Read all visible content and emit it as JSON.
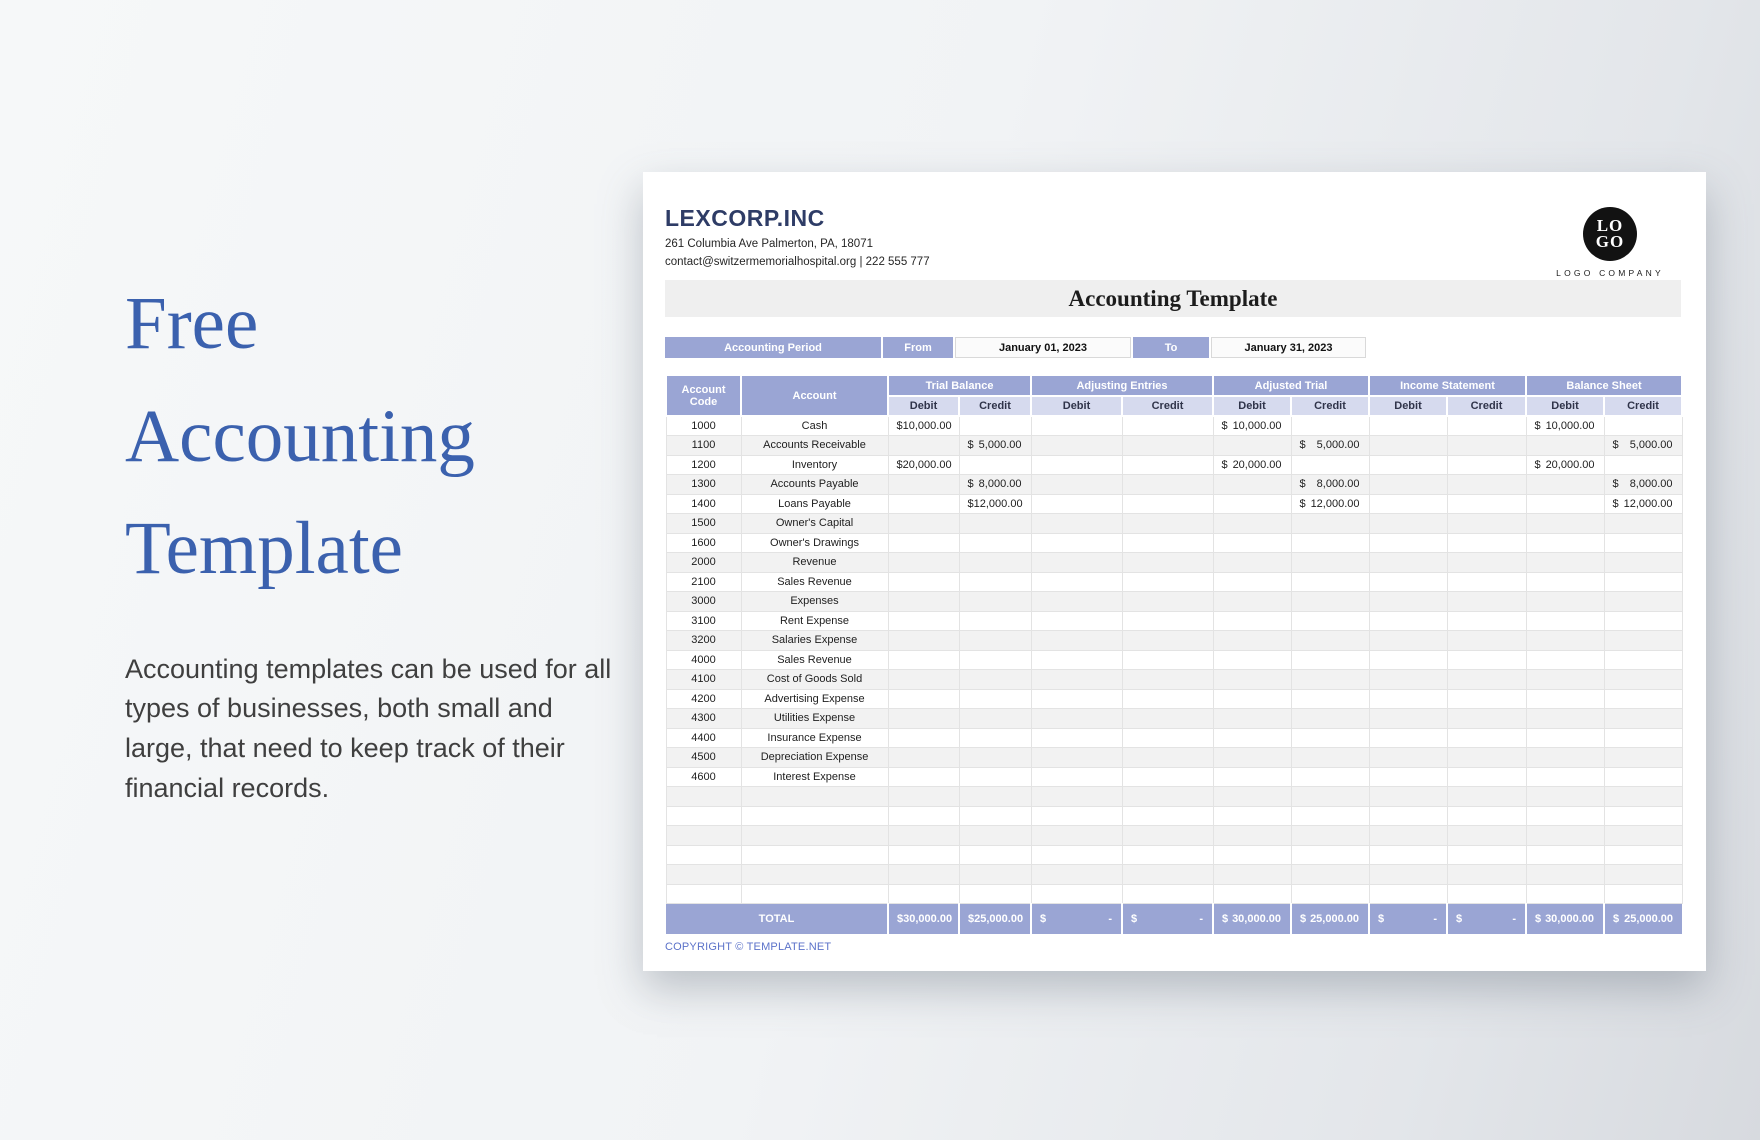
{
  "hero": {
    "title_lines": [
      "Free",
      "Accounting",
      "Template"
    ],
    "description": "Accounting templates can be used for all types of businesses, both small and large, that need to keep track of their financial records."
  },
  "document": {
    "company": {
      "name": "LEXCORP.INC",
      "address": "261 Columbia Ave Palmerton, PA, 18071",
      "contact": "contact@switzermemorialhospital.org | 222 555 777"
    },
    "logo": {
      "top": "LO",
      "bottom": "GO",
      "caption": "LOGO COMPANY"
    },
    "title": "Accounting Template",
    "period": {
      "label": "Accounting Period",
      "from_label": "From",
      "from_value": "January 01, 2023",
      "to_label": "To",
      "to_value": "January 31, 2023"
    },
    "copyright": "COPYRIGHT © TEMPLATE.NET"
  },
  "table": {
    "currency": "$",
    "col_headers": [
      "Account Code",
      "Account"
    ],
    "groups": [
      "Trial Balance",
      "Adjusting Entries",
      "Adjusted Trial",
      "Income Statement",
      "Balance Sheet"
    ],
    "sub_headers": [
      "Debit",
      "Credit"
    ],
    "rows": [
      {
        "code": "1000",
        "account": "Cash",
        "values": [
          "10,000.00",
          "",
          "",
          "",
          "10,000.00",
          "",
          "",
          "",
          "10,000.00",
          ""
        ]
      },
      {
        "code": "1100",
        "account": "Accounts Receivable",
        "values": [
          "",
          "5,000.00",
          "",
          "",
          "",
          "5,000.00",
          "",
          "",
          "",
          "5,000.00"
        ]
      },
      {
        "code": "1200",
        "account": "Inventory",
        "values": [
          "20,000.00",
          "",
          "",
          "",
          "20,000.00",
          "",
          "",
          "",
          "20,000.00",
          ""
        ]
      },
      {
        "code": "1300",
        "account": "Accounts Payable",
        "values": [
          "",
          "8,000.00",
          "",
          "",
          "",
          "8,000.00",
          "",
          "",
          "",
          "8,000.00"
        ]
      },
      {
        "code": "1400",
        "account": "Loans Payable",
        "values": [
          "",
          "12,000.00",
          "",
          "",
          "",
          "12,000.00",
          "",
          "",
          "",
          "12,000.00"
        ]
      },
      {
        "code": "1500",
        "account": "Owner's Capital",
        "values": [
          "",
          "",
          "",
          "",
          "",
          "",
          "",
          "",
          "",
          ""
        ]
      },
      {
        "code": "1600",
        "account": "Owner's Drawings",
        "values": [
          "",
          "",
          "",
          "",
          "",
          "",
          "",
          "",
          "",
          ""
        ]
      },
      {
        "code": "2000",
        "account": "Revenue",
        "values": [
          "",
          "",
          "",
          "",
          "",
          "",
          "",
          "",
          "",
          ""
        ]
      },
      {
        "code": "2100",
        "account": "Sales Revenue",
        "values": [
          "",
          "",
          "",
          "",
          "",
          "",
          "",
          "",
          "",
          ""
        ]
      },
      {
        "code": "3000",
        "account": "Expenses",
        "values": [
          "",
          "",
          "",
          "",
          "",
          "",
          "",
          "",
          "",
          ""
        ]
      },
      {
        "code": "3100",
        "account": "Rent Expense",
        "values": [
          "",
          "",
          "",
          "",
          "",
          "",
          "",
          "",
          "",
          ""
        ]
      },
      {
        "code": "3200",
        "account": "Salaries Expense",
        "values": [
          "",
          "",
          "",
          "",
          "",
          "",
          "",
          "",
          "",
          ""
        ]
      },
      {
        "code": "4000",
        "account": "Sales Revenue",
        "values": [
          "",
          "",
          "",
          "",
          "",
          "",
          "",
          "",
          "",
          ""
        ]
      },
      {
        "code": "4100",
        "account": "Cost of Goods Sold",
        "values": [
          "",
          "",
          "",
          "",
          "",
          "",
          "",
          "",
          "",
          ""
        ]
      },
      {
        "code": "4200",
        "account": "Advertising Expense",
        "values": [
          "",
          "",
          "",
          "",
          "",
          "",
          "",
          "",
          "",
          ""
        ]
      },
      {
        "code": "4300",
        "account": "Utilities Expense",
        "values": [
          "",
          "",
          "",
          "",
          "",
          "",
          "",
          "",
          "",
          ""
        ]
      },
      {
        "code": "4400",
        "account": "Insurance Expense",
        "values": [
          "",
          "",
          "",
          "",
          "",
          "",
          "",
          "",
          "",
          ""
        ]
      },
      {
        "code": "4500",
        "account": "Depreciation Expense",
        "values": [
          "",
          "",
          "",
          "",
          "",
          "",
          "",
          "",
          "",
          ""
        ]
      },
      {
        "code": "4600",
        "account": "Interest Expense",
        "values": [
          "",
          "",
          "",
          "",
          "",
          "",
          "",
          "",
          "",
          ""
        ]
      }
    ],
    "empty_row_count": 6,
    "total_label": "TOTAL",
    "totals": [
      "30,000.00",
      "25,000.00",
      "-",
      "-",
      "30,000.00",
      "25,000.00",
      "-",
      "-",
      "30,000.00",
      "25,000.00"
    ]
  },
  "colors": {
    "header_purple": "#9aa5d4",
    "subheader_lavender": "#d6daee",
    "row_alt_gray": "#f2f2f2",
    "brand_navy": "#2e3c66",
    "hero_blue": "#3b61ae",
    "copyright_blue": "#5b72c9",
    "logo_black": "#121212"
  }
}
